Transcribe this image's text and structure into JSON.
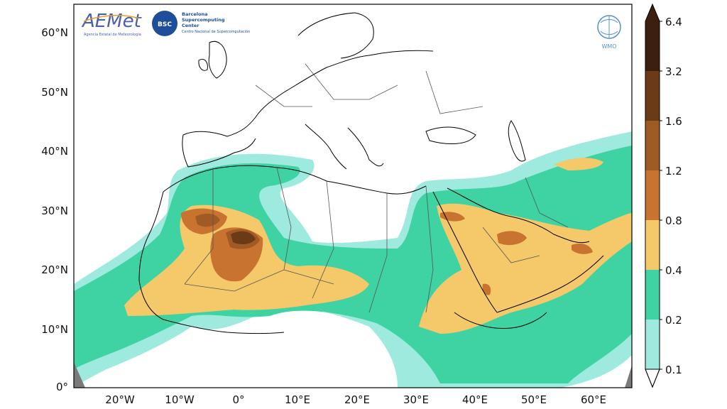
{
  "map": {
    "lat_ticks": [
      "60°N",
      "50°N",
      "40°N",
      "30°N",
      "20°N",
      "10°N",
      "0°"
    ],
    "lon_ticks": [
      "20°W",
      "10°W",
      "0°",
      "10°E",
      "20°E",
      "30°E",
      "40°E",
      "50°E",
      "60°E"
    ]
  },
  "colorbar": {
    "labels": [
      "6.4",
      "3.2",
      "1.6",
      "1.2",
      "0.8",
      "0.4",
      "0.2",
      "0.1"
    ],
    "colors": [
      "#3d1f0d",
      "#6b3a17",
      "#a05a24",
      "#c8732f",
      "#f5c96a",
      "#3fd3a4",
      "#9feade"
    ]
  },
  "logos": {
    "aemet_title": "AEMet",
    "aemet_subtitle": "Agencia Estatal de Meteorología",
    "bsc_badge": "BSC",
    "bsc_line1": "Barcelona",
    "bsc_line2": "Supercomputing",
    "bsc_line3": "Center",
    "bsc_line4": "Centro Nacional de Supercomputación",
    "wmo": "WMO"
  }
}
